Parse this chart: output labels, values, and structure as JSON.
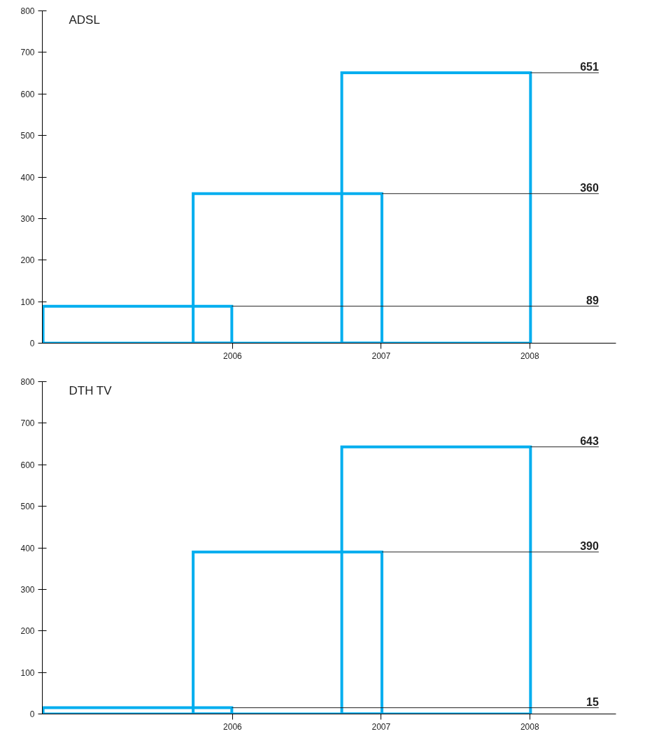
{
  "chart_data": [
    {
      "type": "bar",
      "title": "ADSL",
      "x": [
        2005.36,
        2006.37,
        2007.37
      ],
      "values": [
        89,
        360,
        651
      ],
      "color": "#00aeef",
      "xlim": [
        2004.72,
        2008.58
      ],
      "xticks": [
        2006,
        2007,
        2008
      ],
      "ylim": [
        0,
        800
      ],
      "yticks": [
        0,
        100,
        200,
        300,
        400,
        500,
        600,
        700,
        800
      ],
      "grid": false,
      "ref_lines": [
        {
          "axis": "y",
          "value": 89,
          "label": "89",
          "color": "#222222"
        },
        {
          "axis": "y",
          "value": 360,
          "label": "360",
          "color": "#222222"
        },
        {
          "axis": "y",
          "value": 651,
          "label": "651",
          "color": "#222222"
        }
      ]
    },
    {
      "type": "bar",
      "title": "DTH TV",
      "x": [
        2005.36,
        2006.37,
        2007.37
      ],
      "values": [
        15,
        390,
        643
      ],
      "color": "#00aeef",
      "xlim": [
        2004.72,
        2008.58
      ],
      "xticks": [
        2006,
        2007,
        2008
      ],
      "ylim": [
        0,
        800
      ],
      "yticks": [
        0,
        100,
        200,
        300,
        400,
        500,
        600,
        700,
        800
      ],
      "grid": false,
      "ref_lines": [
        {
          "axis": "y",
          "value": 15,
          "label": "15",
          "color": "#222222"
        },
        {
          "axis": "y",
          "value": 390,
          "label": "390",
          "color": "#222222"
        },
        {
          "axis": "y",
          "value": 643,
          "label": "643",
          "color": "#222222"
        }
      ]
    }
  ]
}
